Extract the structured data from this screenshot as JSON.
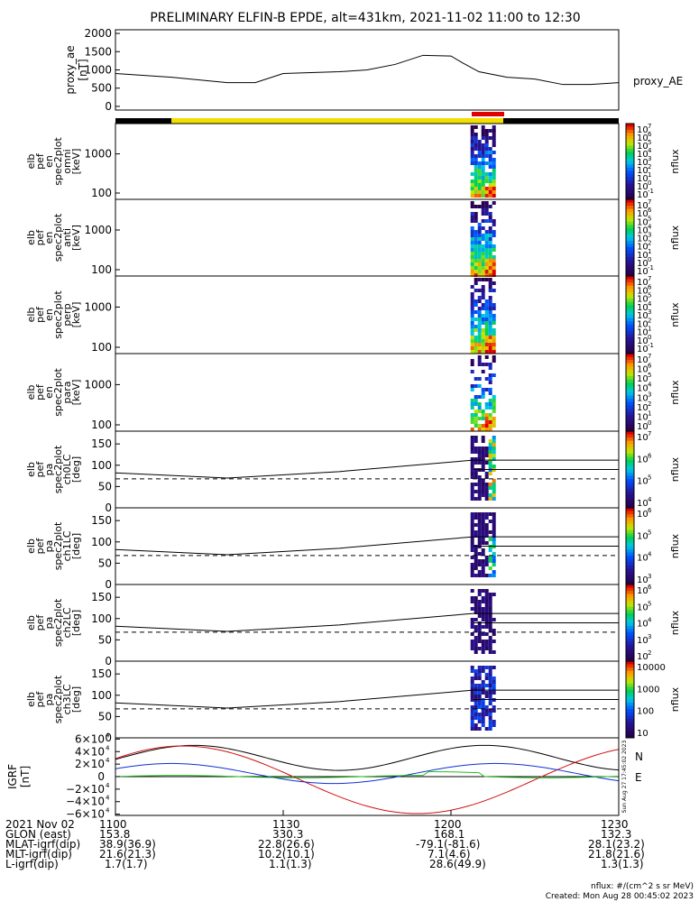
{
  "title": "PRELIMINARY ELFIN-B EPDE, alt=431km, 2021-11-02 11:00 to 12:30",
  "chart_data": [
    {
      "type": "line",
      "id": "proxy_ae",
      "ylabel": "proxy_ae",
      "yunit": "[nT]",
      "legend": "proxy_AE",
      "ylim": [
        -100,
        2100
      ],
      "yticks": [
        "2000",
        "1500",
        "1000",
        "500",
        "0"
      ],
      "x": [
        0,
        10,
        20,
        25,
        30,
        40,
        45,
        50,
        55,
        60,
        62,
        65,
        70,
        75,
        80,
        85,
        90
      ],
      "values": [
        900,
        800,
        650,
        650,
        900,
        950,
        1000,
        1150,
        1400,
        1380,
        1200,
        950,
        800,
        750,
        600,
        600,
        650
      ]
    },
    {
      "type": "heatmap",
      "id": "omni",
      "ylabel_lines": [
        "elb",
        "pef",
        "en",
        "spec2plot",
        "omni",
        "[keV]"
      ],
      "yticks": [
        "1000",
        "100"
      ],
      "colorbar_ticks": [
        "10",
        "10",
        "10",
        "10",
        "10",
        "10",
        "10",
        "10",
        "10"
      ],
      "colorbar_exps": [
        "7",
        "6",
        "5",
        "4",
        "3",
        "2",
        "1",
        "0",
        "-1"
      ],
      "colorbar_label": "nflux"
    },
    {
      "type": "heatmap",
      "id": "anti",
      "ylabel_lines": [
        "elb",
        "pef",
        "en",
        "spec2plot",
        "anti",
        "[keV]"
      ],
      "yticks": [
        "1000",
        "100"
      ],
      "colorbar_ticks": [
        "10",
        "10",
        "10",
        "10",
        "10",
        "10",
        "10",
        "10",
        "10"
      ],
      "colorbar_exps": [
        "7",
        "6",
        "5",
        "4",
        "3",
        "2",
        "1",
        "0",
        "-1"
      ],
      "colorbar_label": "nflux"
    },
    {
      "type": "heatmap",
      "id": "perp",
      "ylabel_lines": [
        "elb",
        "pef",
        "en",
        "spec2plot",
        "perp",
        "[keV]"
      ],
      "yticks": [
        "1000",
        "100"
      ],
      "colorbar_ticks": [
        "10",
        "10",
        "10",
        "10",
        "10",
        "10",
        "10",
        "10",
        "10"
      ],
      "colorbar_exps": [
        "7",
        "6",
        "5",
        "4",
        "3",
        "2",
        "1",
        "0",
        "-1"
      ],
      "colorbar_label": "nflux"
    },
    {
      "type": "heatmap",
      "id": "para",
      "ylabel_lines": [
        "elb",
        "pef",
        "en",
        "spec2plot",
        "para",
        "[keV]"
      ],
      "yticks": [
        "1000",
        "100"
      ],
      "colorbar_ticks": [
        "10",
        "10",
        "10",
        "10",
        "10",
        "10",
        "10",
        "10"
      ],
      "colorbar_exps": [
        "7",
        "6",
        "5",
        "4",
        "3",
        "2",
        "1",
        "0"
      ],
      "colorbar_label": "nflux"
    },
    {
      "type": "heatmap",
      "id": "ch0lc",
      "ylabel_lines": [
        "elb",
        "pef",
        "pa",
        "spec2plot",
        "ch0LC",
        "[deg]"
      ],
      "yticks": [
        "150",
        "100",
        "50",
        "0"
      ],
      "colorbar_ticks": [
        "10",
        "10",
        "10",
        "10"
      ],
      "colorbar_exps": [
        "7",
        "6",
        "5",
        "4"
      ],
      "colorbar_label": "nflux"
    },
    {
      "type": "heatmap",
      "id": "ch1lc",
      "ylabel_lines": [
        "elb",
        "pef",
        "pa",
        "spec2plot",
        "ch1LC",
        "[deg]"
      ],
      "yticks": [
        "150",
        "100",
        "50",
        "0"
      ],
      "colorbar_ticks": [
        "10",
        "10",
        "10",
        "10"
      ],
      "colorbar_exps": [
        "6",
        "5",
        "4",
        "3"
      ],
      "colorbar_label": "nflux"
    },
    {
      "type": "heatmap",
      "id": "ch2lc",
      "ylabel_lines": [
        "elb",
        "pef",
        "pa",
        "spec2plot",
        "ch2LC",
        "[deg]"
      ],
      "yticks": [
        "150",
        "100",
        "50",
        "0"
      ],
      "colorbar_ticks": [
        "10",
        "10",
        "10",
        "10",
        "10"
      ],
      "colorbar_exps": [
        "6",
        "5",
        "4",
        "3",
        "2"
      ],
      "colorbar_label": "nflux"
    },
    {
      "type": "heatmap",
      "id": "ch3lc",
      "ylabel_lines": [
        "elb",
        "pef",
        "pa",
        "spec2plot",
        "ch3LC",
        "[deg]"
      ],
      "yticks": [
        "150",
        "100",
        "50",
        "0"
      ],
      "colorbar_ticks": [
        "10000",
        "1000",
        "100",
        "10"
      ],
      "colorbar_label": "nflux"
    },
    {
      "type": "line",
      "id": "igrf",
      "ylabel": "IGRF",
      "yunit": "[nT]",
      "ylim": [
        -62000,
        62000
      ],
      "yticks": [
        "6×10",
        "4×10",
        "2×10",
        "0",
        "−2×10",
        "−4×10",
        "−6×10"
      ],
      "ytick_exp": "4",
      "legend": [
        "N",
        "E"
      ],
      "series": [
        {
          "name": "N",
          "color": "#d01010"
        },
        {
          "name": "E",
          "color": "#20c020"
        }
      ],
      "side_text": "Sun Aug 27 17:45:02 2023"
    }
  ],
  "xaxis": {
    "ticks": [
      "1100",
      "1130",
      "1200",
      "1230"
    ]
  },
  "footer": {
    "rows": [
      [
        "2021 Nov 02",
        "1100",
        "1130",
        "1200",
        "1230"
      ],
      [
        "GLON (east)",
        "153.8",
        "330.3",
        "168.1",
        "132.3"
      ],
      [
        "MLAT-igrf(dip)",
        "38.9(36.9)",
        "22.8(26.6)",
        "-79.1(-81.6)",
        "28.1(23.2)"
      ],
      [
        "MLT-igrf(dip)",
        "21.6(21.3)",
        "10.2(10.1)",
        "7.1(4.6)",
        "21.8(21.6)"
      ],
      [
        "L-igrf(dip)",
        "1.7(1.7)",
        "1.1(1.3)",
        "28.6(49.9)",
        "1.3(1.3)"
      ]
    ],
    "units": "nflux: #/(cm^2 s sr MeV)",
    "created": "Created: Mon Aug 28 00:45:02 2023"
  }
}
